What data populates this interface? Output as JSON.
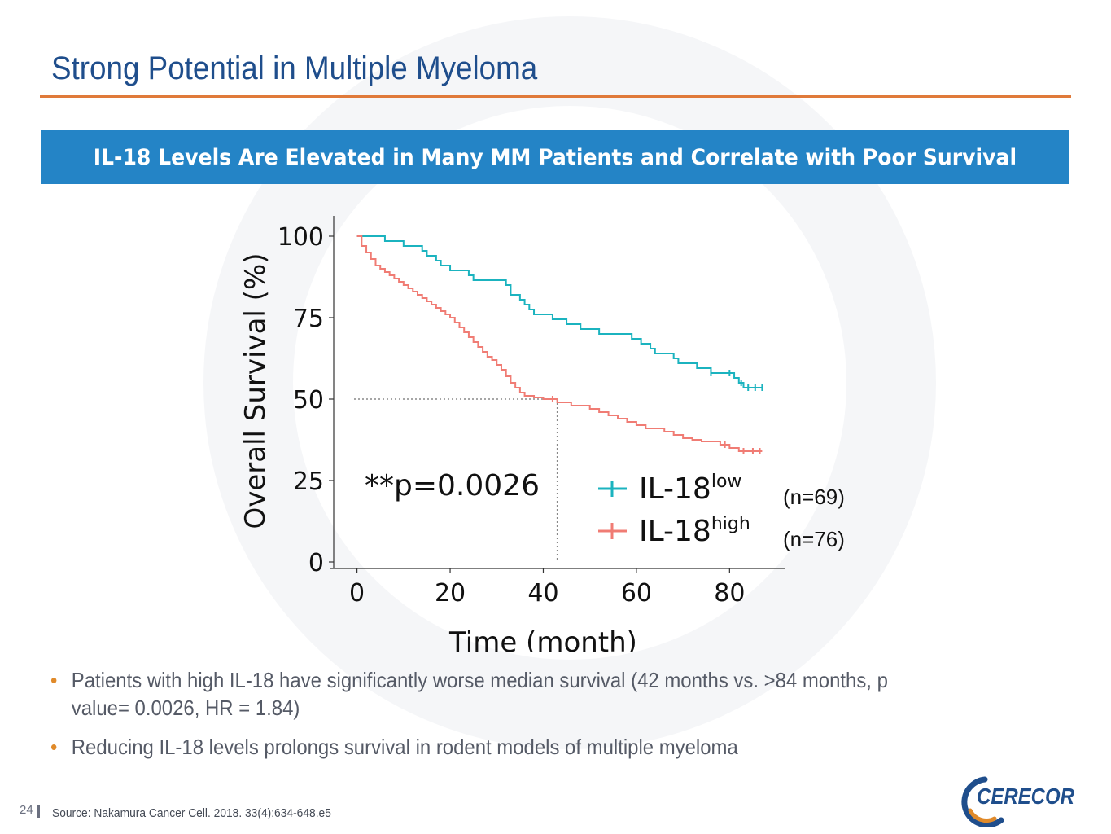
{
  "slide": {
    "title": "Strong Potential in Multiple Myeloma",
    "banner": "IL-18 Levels Are Elevated in Many MM Patients and Correlate with Poor Survival",
    "page_number": "24",
    "source": "Source: Nakamura Cancer Cell. 2018. 33(4):634-648.e5",
    "logo_text": "CERECOR",
    "accent_color": "#e07a3a",
    "banner_color": "#2484c6",
    "title_color": "#1f4e8c"
  },
  "bullets": [
    "Patients with high IL-18 have significantly worse median survival (42 months vs. >84 months, p value= 0.0026, HR = 1.84)",
    "Reducing IL-18 levels prolongs survival in rodent models of multiple myeloma"
  ],
  "chart_data": {
    "type": "line",
    "style": "step",
    "xlabel": "Time (month)",
    "ylabel": "Overall Survival (%)",
    "xlim": [
      -5,
      92
    ],
    "ylim": [
      0,
      105
    ],
    "xticks": [
      0,
      20,
      40,
      60,
      80
    ],
    "yticks": [
      0,
      25,
      50,
      75,
      100
    ],
    "annotation": "**p=0.0026",
    "median_line": {
      "x": 43,
      "y": 50
    },
    "series": [
      {
        "name": "IL-18",
        "superscript": "low",
        "n_label": "(n=69)",
        "color": "#1bb3bf",
        "x": [
          0,
          5,
          6,
          10,
          14,
          15,
          17,
          18,
          20,
          24,
          25,
          32,
          33,
          35,
          36,
          37,
          38,
          42,
          45,
          48,
          52,
          58,
          59,
          61,
          63,
          64,
          68,
          69,
          70,
          73,
          76,
          77,
          78,
          81,
          82,
          83,
          84,
          87
        ],
        "y": [
          100,
          100,
          98.5,
          97,
          95.5,
          94,
          92.5,
          91,
          89.5,
          88,
          86.5,
          85,
          82,
          80.5,
          79,
          77.5,
          76,
          74.5,
          73,
          71.5,
          70,
          70,
          68.5,
          67,
          65.5,
          64,
          62.5,
          61,
          61,
          59.5,
          58,
          58,
          58,
          56.5,
          55,
          53.5,
          53.5,
          53.5
        ],
        "censor": [
          {
            "x": 76,
            "y": 58
          },
          {
            "x": 80,
            "y": 58
          },
          {
            "x": 82.5,
            "y": 55
          },
          {
            "x": 84,
            "y": 53.5
          },
          {
            "x": 85.5,
            "y": 53.5
          },
          {
            "x": 87,
            "y": 53.5
          }
        ]
      },
      {
        "name": "IL-18",
        "superscript": "high",
        "n_label": "(n=76)",
        "color": "#f07c74",
        "x": [
          0,
          1,
          2,
          3,
          4,
          5,
          6,
          7,
          8,
          9,
          10,
          11,
          12,
          13,
          14,
          15,
          16,
          17,
          18,
          19,
          20,
          21,
          22,
          23,
          24,
          25,
          26,
          27,
          28,
          29,
          30,
          31,
          32,
          33,
          34,
          35,
          36,
          38,
          40,
          42,
          43,
          46,
          50,
          52,
          54,
          56,
          58,
          60,
          62,
          66,
          68,
          70,
          72,
          74,
          78,
          80,
          82,
          84,
          87
        ],
        "y": [
          100,
          97,
          95,
          93,
          91,
          90,
          89,
          88,
          87,
          86,
          85,
          84,
          83,
          82,
          81,
          80,
          79,
          78,
          77,
          76,
          75,
          73.5,
          72,
          70.5,
          69,
          67.5,
          66,
          64.5,
          63,
          62,
          60.5,
          59,
          57,
          55,
          53.5,
          52,
          51,
          50.5,
          50,
          50,
          49,
          48,
          47,
          46,
          45,
          44,
          43,
          42,
          41,
          40,
          39,
          38,
          37.5,
          37,
          36,
          35,
          34,
          34,
          34
        ],
        "censor": [
          {
            "x": 42,
            "y": 50
          },
          {
            "x": 79,
            "y": 36
          },
          {
            "x": 83,
            "y": 34
          },
          {
            "x": 85,
            "y": 34
          },
          {
            "x": 86.5,
            "y": 34
          }
        ]
      }
    ]
  }
}
